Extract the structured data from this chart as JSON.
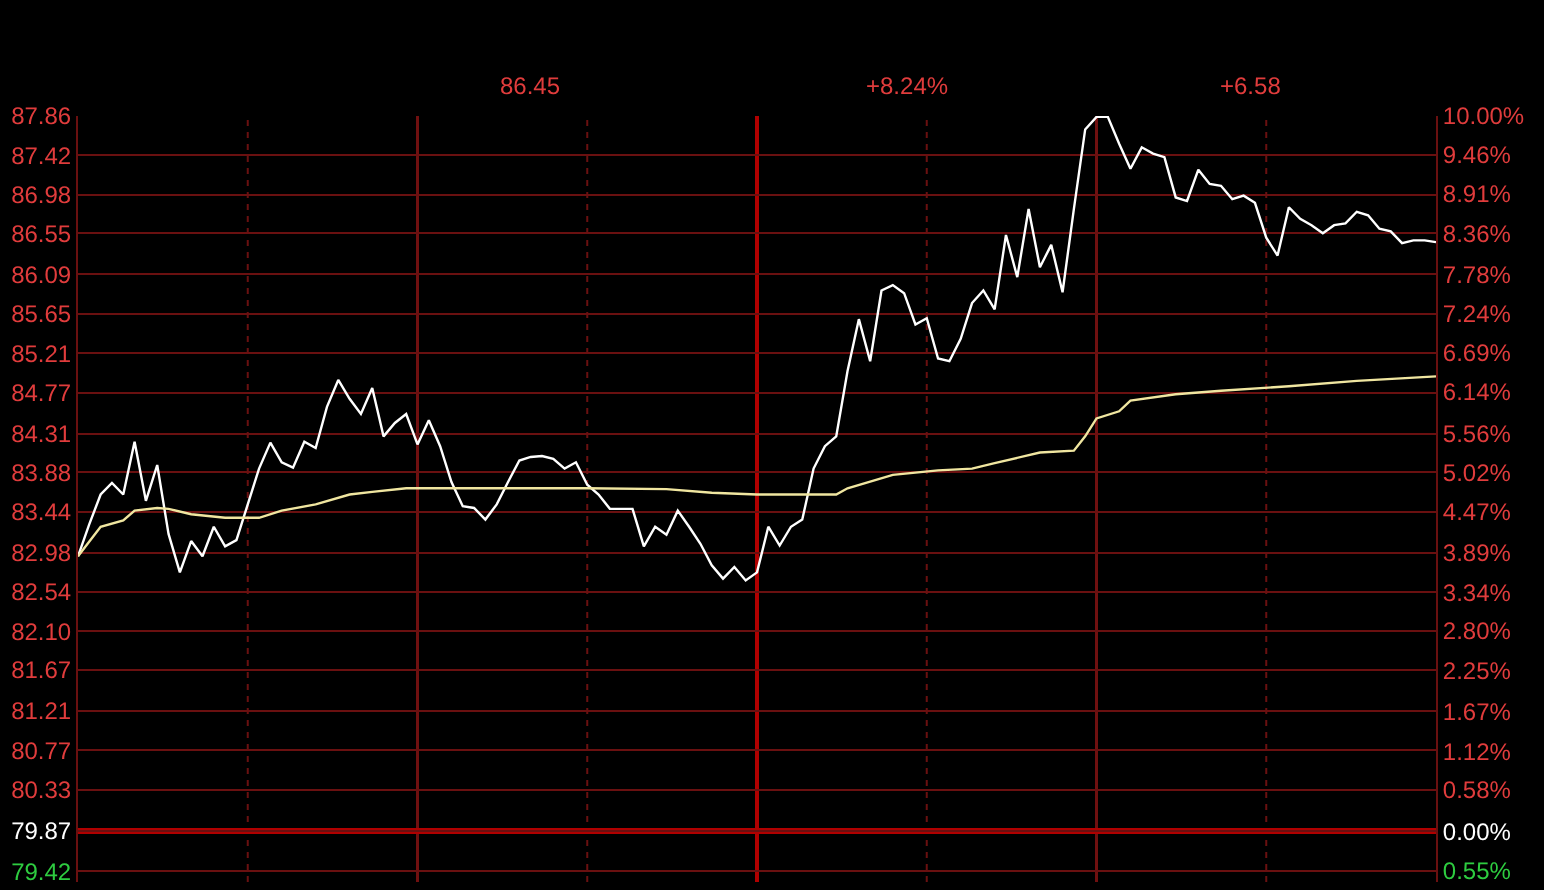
{
  "chart_data": {
    "type": "line",
    "annotations": [
      "86.45",
      "+8.24%",
      "+6.58"
    ],
    "categories": [
      null,
      null,
      null,
      null,
      null,
      null,
      null,
      null,
      null,
      null,
      null,
      null,
      null,
      null,
      null,
      null,
      null,
      null,
      null,
      null,
      null,
      null,
      null,
      null,
      null,
      null,
      null,
      null,
      null,
      null,
      null,
      null,
      null,
      null,
      null,
      null,
      null,
      null,
      null,
      null,
      null,
      null,
      null,
      null,
      null,
      null,
      null,
      null,
      null,
      null,
      null,
      null,
      null,
      null,
      null,
      null,
      null,
      null,
      null,
      null,
      null,
      null,
      null,
      null,
      null,
      null,
      null,
      null,
      null,
      null,
      null,
      null,
      null,
      null,
      null,
      null,
      null,
      null,
      null,
      null,
      null,
      null,
      null,
      null,
      null,
      null,
      null,
      null,
      null,
      null,
      null,
      null,
      null,
      null,
      null,
      null,
      null,
      null,
      null,
      null,
      null,
      null,
      null,
      null,
      null,
      null,
      null,
      null,
      null,
      null,
      null,
      null,
      null,
      null,
      null,
      null,
      null,
      null,
      null,
      null,
      null
    ],
    "series": [
      {
        "color": "#ffffff",
        "values": [
          82.94,
          83.3,
          83.63,
          83.76,
          83.63,
          84.22,
          83.56,
          83.96,
          83.19,
          82.76,
          83.11,
          82.94,
          83.27,
          83.05,
          83.12,
          83.52,
          83.92,
          84.21,
          83.99,
          83.93,
          84.22,
          84.15,
          84.61,
          84.91,
          84.7,
          84.53,
          84.82,
          84.28,
          84.43,
          84.53,
          84.19,
          84.46,
          84.17,
          83.77,
          83.5,
          83.48,
          83.35,
          83.52,
          83.77,
          84.01,
          84.05,
          84.06,
          84.03,
          83.92,
          83.99,
          83.74,
          83.63,
          83.47,
          83.47,
          83.47,
          83.05,
          83.27,
          83.18,
          83.45,
          83.27,
          83.08,
          82.84,
          82.69,
          82.82,
          82.67,
          82.76,
          83.27,
          83.06,
          83.27,
          83.35,
          83.92,
          84.17,
          84.28,
          85.01,
          85.59,
          85.12,
          85.91,
          85.97,
          85.88,
          85.53,
          85.6,
          85.15,
          85.12,
          85.37,
          85.77,
          85.91,
          85.7,
          86.53,
          86.06,
          86.82,
          86.17,
          86.42,
          85.89,
          86.82,
          87.71,
          87.85,
          87.85,
          87.55,
          87.27,
          87.51,
          87.44,
          87.4,
          86.95,
          86.91,
          87.26,
          87.1,
          87.08,
          86.93,
          86.97,
          86.89,
          86.5,
          86.3,
          86.84,
          86.71,
          86.64,
          86.55,
          86.64,
          86.66,
          86.79,
          86.75,
          86.6,
          86.57,
          86.44,
          86.47,
          86.47,
          86.45
        ]
      },
      {
        "color": "#f0e6a0",
        "values": [
          82.94,
          null,
          83.27,
          null,
          83.34,
          83.45,
          null,
          83.48,
          83.47,
          null,
          83.41,
          null,
          null,
          83.37,
          null,
          null,
          83.37,
          null,
          83.45,
          null,
          null,
          83.52,
          null,
          null,
          83.63,
          null,
          83.66,
          null,
          null,
          83.7,
          null,
          null,
          null,
          null,
          83.7,
          null,
          null,
          null,
          null,
          null,
          83.7,
          null,
          null,
          null,
          null,
          83.7,
          null,
          null,
          null,
          null,
          null,
          null,
          83.69,
          null,
          null,
          null,
          83.65,
          null,
          null,
          null,
          83.63,
          null,
          null,
          null,
          null,
          null,
          null,
          83.63,
          83.7,
          null,
          null,
          null,
          83.85,
          null,
          null,
          null,
          83.9,
          null,
          null,
          83.92,
          null,
          83.98,
          null,
          null,
          null,
          84.1,
          null,
          null,
          84.12,
          84.28,
          84.48,
          null,
          84.56,
          84.68,
          null,
          null,
          null,
          84.75,
          null,
          null,
          null,
          84.79,
          null,
          null,
          null,
          null,
          null,
          84.84,
          null,
          null,
          null,
          null,
          null,
          84.9,
          null,
          null,
          null,
          null,
          null,
          null,
          84.95
        ]
      }
    ],
    "ylim": [
      79.3,
      87.86
    ],
    "yticks": [
      87.86,
      87.42,
      86.98,
      86.55,
      86.09,
      85.65,
      85.21,
      84.77,
      84.31,
      83.88,
      83.44,
      82.98,
      82.54,
      {
        "value": 82.1,
        "label": "82.10"
      },
      81.67,
      81.21,
      80.77,
      80.33,
      79.87,
      79.42
    ],
    "y2lim": [
      -0.71,
      10.0
    ],
    "y2ticks": [
      {
        "value": 10.0,
        "label": "10.00%"
      },
      {
        "value": 9.46,
        "label": "9.46%"
      },
      {
        "value": 8.91,
        "label": "8.91%"
      },
      {
        "value": 8.36,
        "label": "8.36%"
      },
      {
        "value": 7.78,
        "label": "7.78%"
      },
      {
        "value": 7.24,
        "label": "7.24%"
      },
      {
        "value": 6.69,
        "label": "6.69%"
      },
      {
        "value": 6.14,
        "label": "6.14%"
      },
      {
        "value": 5.56,
        "label": "5.56%"
      },
      {
        "value": 5.02,
        "label": "5.02%"
      },
      {
        "value": 4.47,
        "label": "4.47%"
      },
      {
        "value": 3.89,
        "label": "3.89%"
      },
      {
        "value": 3.34,
        "label": "3.34%"
      },
      {
        "value": 2.8,
        "label": "2.80%"
      },
      {
        "value": 2.25,
        "label": "2.25%"
      },
      {
        "value": 1.67,
        "label": "1.67%"
      },
      {
        "value": 1.12,
        "label": "1.12%"
      },
      {
        "value": 0.58,
        "label": "0.58%"
      },
      {
        "value": 0.0,
        "label": "0.00%"
      },
      {
        "value": -0.55,
        "label": "0.55%"
      }
    ],
    "ref_lines": [
      {
        "axis": "y",
        "value": 79.87,
        "color": "#b00000"
      }
    ],
    "grid": true,
    "marker": "none",
    "line_style": "solid"
  }
}
